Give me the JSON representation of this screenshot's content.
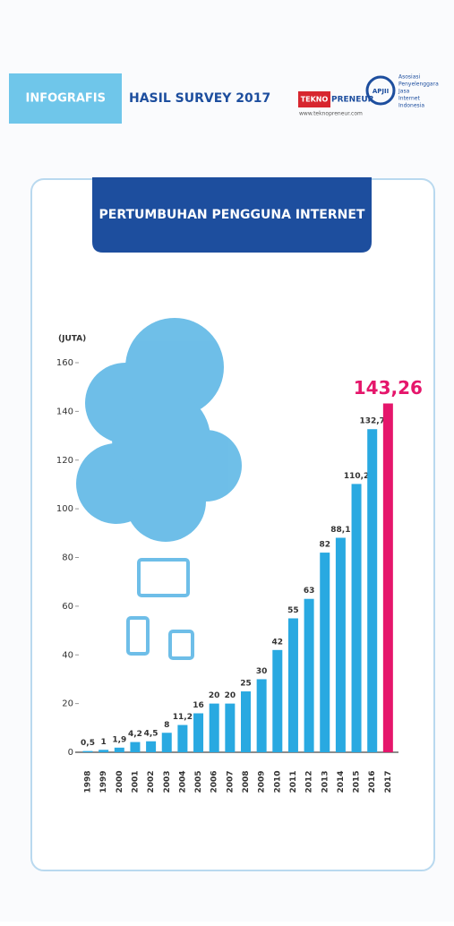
{
  "header": {
    "tag": "INFOGRAFIS",
    "title": "HASIL SURVEY 2017",
    "brand_a": "TEKNO",
    "brand_b": "PRENEUR",
    "url": "www.teknopreneur.com",
    "org_short": "APJII",
    "org_lines": [
      "Asosiasi",
      "Penyelenggara",
      "Jasa",
      "Internet",
      "Indonesia"
    ]
  },
  "chart_data": {
    "type": "bar",
    "title": "PERTUMBUHAN PENGGUNA INTERNET",
    "y_label": "(JUTA)",
    "categories": [
      "1998",
      "1999",
      "2000",
      "2001",
      "2002",
      "2003",
      "2004",
      "2005",
      "2006",
      "2007",
      "2008",
      "2009",
      "2010",
      "2011",
      "2012",
      "2013",
      "2014",
      "2015",
      "2016",
      "2017"
    ],
    "values": [
      0.5,
      1,
      1.9,
      4.2,
      4.5,
      8,
      11.2,
      16,
      20,
      20,
      25,
      30,
      42,
      55,
      63,
      82,
      88.1,
      110.2,
      132.7,
      143.26
    ],
    "value_labels": [
      "0,5",
      "1",
      "1,9",
      "4,2",
      "4,5",
      "8",
      "11,2",
      "16",
      "20",
      "20",
      "25",
      "30",
      "42",
      "55",
      "63",
      "82",
      "88,1",
      "110,2",
      "132,7",
      "143,26"
    ],
    "colors": [
      "#29a9e1",
      "#29a9e1",
      "#29a9e1",
      "#29a9e1",
      "#29a9e1",
      "#29a9e1",
      "#29a9e1",
      "#29a9e1",
      "#29a9e1",
      "#29a9e1",
      "#29a9e1",
      "#29a9e1",
      "#29a9e1",
      "#29a9e1",
      "#29a9e1",
      "#29a9e1",
      "#29a9e1",
      "#29a9e1",
      "#29a9e1",
      "#e5166b"
    ],
    "ylim": [
      0,
      160
    ],
    "yticks": [
      0,
      20,
      40,
      60,
      80,
      100,
      120,
      140,
      160
    ]
  }
}
